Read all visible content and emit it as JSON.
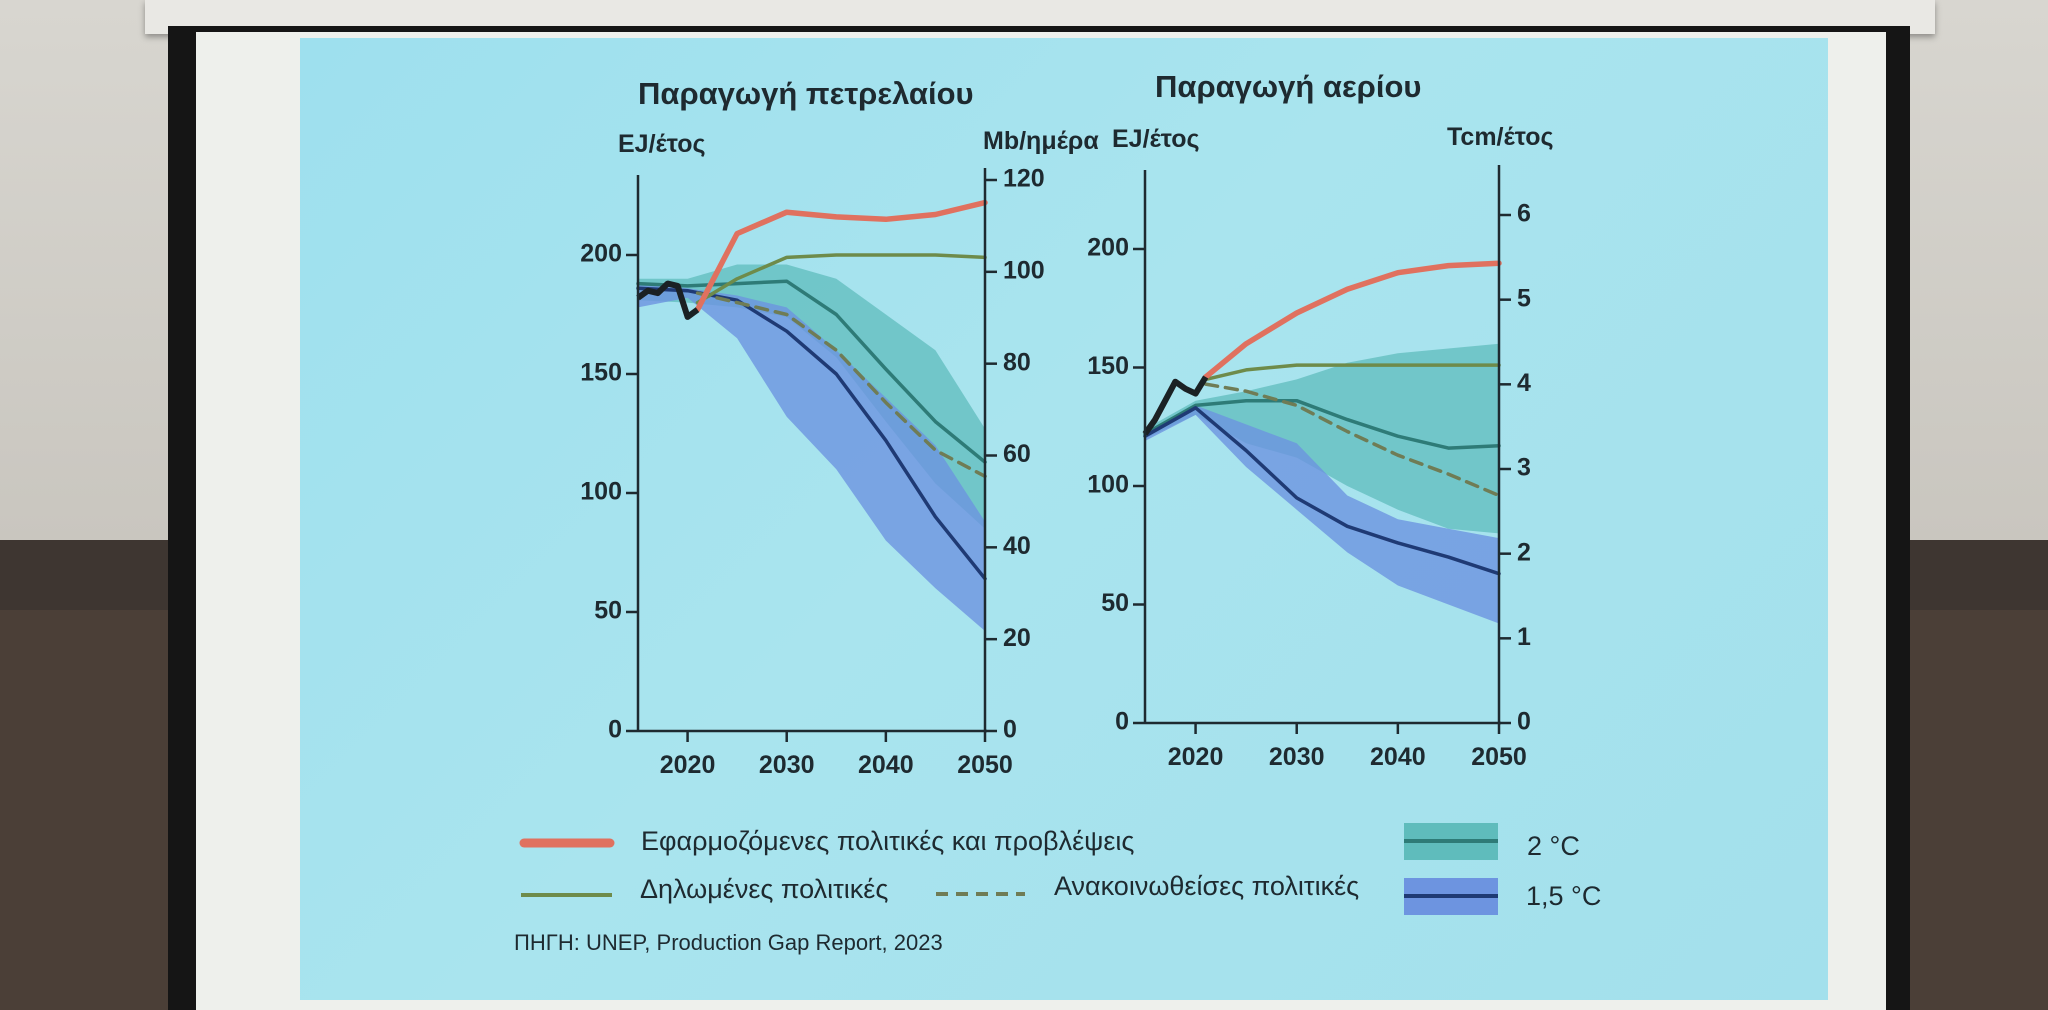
{
  "chart_data": [
    {
      "type": "line",
      "title": "Παραγωγή πετρελαίου",
      "ylabel_left": "EJ/έτος",
      "ylabel_right": "Mb/ημέρα",
      "xlim": [
        2015,
        2050
      ],
      "ylim_left": [
        0,
        230
      ],
      "ylim_right": [
        0,
        120
      ],
      "x_ticks": [
        2020,
        2030,
        2040,
        2050
      ],
      "y_ticks_left": [
        0,
        50,
        100,
        150,
        200
      ],
      "y_ticks_right": [
        0,
        20,
        40,
        60,
        80,
        100,
        120
      ],
      "historical": {
        "x": [
          2015,
          2016,
          2017,
          2018,
          2019,
          2020,
          2021
        ],
        "y": [
          182,
          185,
          184,
          188,
          187,
          174,
          177
        ]
      },
      "series": [
        {
          "name": "Εφαρμοζόμενες πολιτικές και προβλέψεις",
          "x": [
            2021,
            2025,
            2030,
            2035,
            2040,
            2045,
            2050
          ],
          "y": [
            177,
            209,
            218,
            216,
            215,
            217,
            222
          ]
        },
        {
          "name": "Δηλωμένες πολιτικές",
          "x": [
            2021,
            2025,
            2030,
            2035,
            2040,
            2045,
            2050
          ],
          "y": [
            180,
            190,
            199,
            200,
            200,
            200,
            199
          ]
        },
        {
          "name": "Ανακοινωθείσες πολιτικές",
          "x": [
            2021,
            2025,
            2030,
            2035,
            2040,
            2045,
            2050
          ],
          "y": [
            184,
            180,
            175,
            160,
            138,
            118,
            107
          ]
        },
        {
          "name": "2 °C",
          "x": [
            2015,
            2020,
            2025,
            2030,
            2035,
            2040,
            2045,
            2050
          ],
          "y": [
            188,
            187,
            188,
            189,
            175,
            152,
            130,
            113
          ]
        },
        {
          "name": "1,5 °C",
          "x": [
            2015,
            2020,
            2025,
            2030,
            2035,
            2040,
            2045,
            2050
          ],
          "y": [
            186,
            185,
            181,
            168,
            150,
            122,
            90,
            64
          ]
        }
      ],
      "bands": [
        {
          "name": "2 °C",
          "x": [
            2015,
            2020,
            2025,
            2030,
            2035,
            2040,
            2045,
            2050
          ],
          "upper": [
            190,
            190,
            196,
            196,
            190,
            175,
            160,
            127
          ],
          "lower": [
            181,
            180,
            178,
            174,
            157,
            130,
            104,
            85
          ]
        },
        {
          "name": "1,5 °C",
          "x": [
            2015,
            2020,
            2025,
            2030,
            2035,
            2040,
            2045,
            2050
          ],
          "upper": [
            188,
            186,
            183,
            178,
            160,
            140,
            120,
            88
          ],
          "lower": [
            178,
            182,
            165,
            132,
            110,
            80,
            60,
            42
          ]
        }
      ]
    },
    {
      "type": "line",
      "title": "Παραγωγή αερίου",
      "ylabel_left": "EJ/έτος",
      "ylabel_right": "Tcm/έτος",
      "xlim": [
        2015,
        2050
      ],
      "ylim_left": [
        0,
        230
      ],
      "ylim_right": [
        0,
        6.6
      ],
      "x_ticks": [
        2020,
        2030,
        2040,
        2050
      ],
      "y_ticks_left": [
        0,
        50,
        100,
        150,
        200
      ],
      "y_ticks_right": [
        0,
        1,
        2,
        3,
        4,
        5,
        6
      ],
      "historical": {
        "x": [
          2015,
          2016,
          2017,
          2018,
          2019,
          2020,
          2021
        ],
        "y": [
          122,
          128,
          136,
          144,
          141,
          139,
          146
        ]
      },
      "series": [
        {
          "name": "Εφαρμοζόμενες πολιτικές και προβλέψεις",
          "x": [
            2021,
            2025,
            2030,
            2035,
            2040,
            2045,
            2050
          ],
          "y": [
            146,
            160,
            173,
            183,
            190,
            193,
            194
          ]
        },
        {
          "name": "Δηλωμένες πολιτικές",
          "x": [
            2021,
            2025,
            2030,
            2035,
            2040,
            2045,
            2050
          ],
          "y": [
            145,
            149,
            151,
            151,
            151,
            151,
            151
          ]
        },
        {
          "name": "Ανακοινωθείσες πολιτικές",
          "x": [
            2021,
            2025,
            2030,
            2035,
            2040,
            2045,
            2050
          ],
          "y": [
            143,
            140,
            134,
            123,
            113,
            105,
            96
          ]
        },
        {
          "name": "2 °C",
          "x": [
            2015,
            2020,
            2025,
            2030,
            2035,
            2040,
            2045,
            2050
          ],
          "y": [
            122,
            134,
            136,
            136,
            128,
            121,
            116,
            117
          ]
        },
        {
          "name": "1,5 °C",
          "x": [
            2015,
            2020,
            2025,
            2030,
            2035,
            2040,
            2045,
            2050
          ],
          "y": [
            121,
            133,
            115,
            95,
            83,
            76,
            70,
            63
          ]
        }
      ],
      "bands": [
        {
          "name": "2 °C",
          "x": [
            2015,
            2020,
            2025,
            2030,
            2035,
            2040,
            2045,
            2050
          ],
          "upper": [
            124,
            136,
            140,
            145,
            152,
            156,
            158,
            160
          ],
          "lower": [
            120,
            130,
            118,
            112,
            100,
            90,
            82,
            80
          ]
        },
        {
          "name": "1,5 °C",
          "x": [
            2015,
            2020,
            2025,
            2030,
            2035,
            2040,
            2045,
            2050
          ],
          "upper": [
            123,
            134,
            126,
            118,
            96,
            86,
            82,
            78
          ],
          "lower": [
            119,
            130,
            108,
            90,
            72,
            58,
            50,
            42
          ]
        }
      ]
    }
  ],
  "legend": {
    "current_policies": "Εφαρμοζόμενες πολιτικές και προβλέψεις",
    "stated_policies": "Δηλωμένες πολιτικές",
    "announced_policies": "Ανακοινωθείσες πολιτικές",
    "two_degrees": "2 °C",
    "one_point_five": "1,5 °C"
  },
  "source": "ΠΗΓΗ: UNEP, Production Gap Report, 2023",
  "colors": {
    "current_policies": "#e0715f",
    "stated_policies": "#6e8b4a",
    "announced_policies": "#6f7c55",
    "two_degrees_band": "#5fbcbc",
    "two_degrees_line": "#2e7b77",
    "one_point_five_band": "#6d94e0",
    "one_point_five_line": "#1f3a74",
    "historical": "#1b2124",
    "axis": "#1e2a30"
  }
}
